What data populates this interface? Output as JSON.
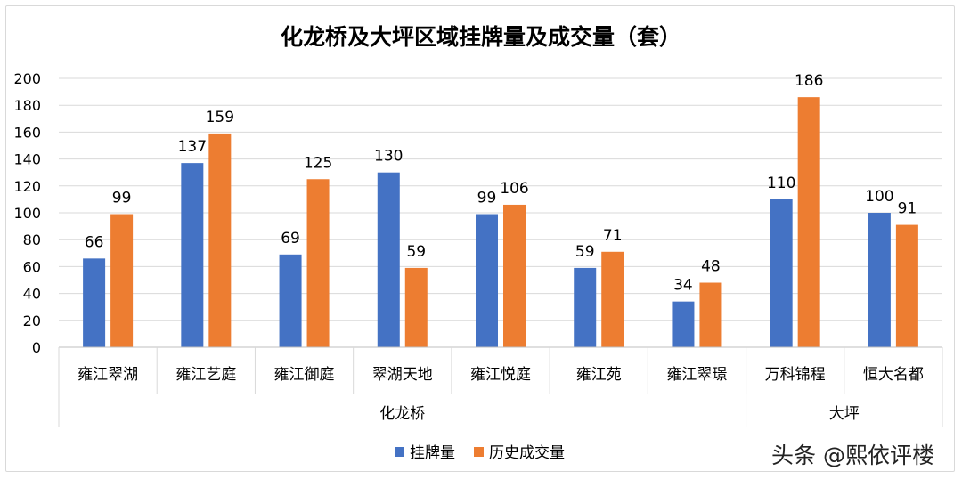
{
  "chart_data": {
    "type": "bar",
    "title": "化龙桥及大坪区域挂牌量及成交量（套）",
    "categories": [
      "雍江翠湖",
      "雍江艺庭",
      "雍江御庭",
      "翠湖天地",
      "雍江悦庭",
      "雍江苑",
      "雍江翠璟",
      "万科锦程",
      "恒大名都"
    ],
    "groups": [
      {
        "label": "化龙桥",
        "count": 7
      },
      {
        "label": "大坪",
        "count": 2
      }
    ],
    "series": [
      {
        "name": "挂牌量",
        "color": "#4472C4",
        "values": [
          66,
          137,
          69,
          130,
          99,
          59,
          34,
          110,
          100
        ]
      },
      {
        "name": "历史成交量",
        "color": "#ED7D31",
        "values": [
          99,
          159,
          125,
          59,
          106,
          71,
          48,
          186,
          91
        ]
      }
    ],
    "ylim": [
      0,
      200
    ],
    "yticks": [
      0,
      20,
      40,
      60,
      80,
      100,
      120,
      140,
      160,
      180,
      200
    ],
    "grid": true,
    "legend": "bottom"
  },
  "watermark": "头条 @熙依评楼"
}
